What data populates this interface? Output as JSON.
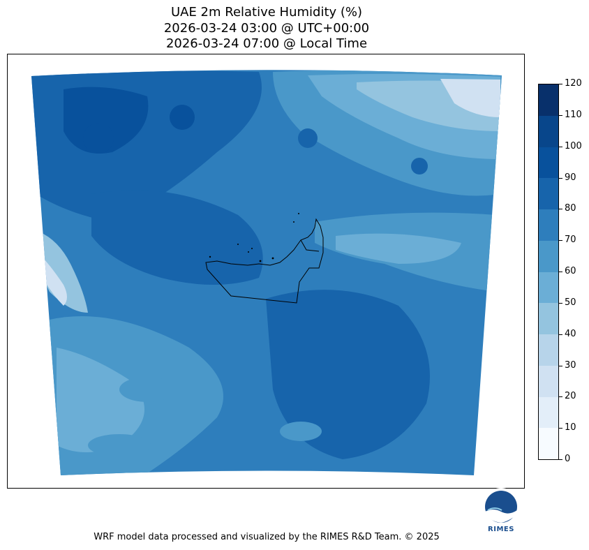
{
  "title": {
    "line1": "UAE 2m Relative Humidity (%)",
    "line2": "2026-03-24 03:00 @ UTC+00:00",
    "line3": "2026-03-24 07:00 @ Local Time"
  },
  "colorbar": {
    "ticks": [
      "0",
      "10",
      "20",
      "30",
      "40",
      "50",
      "60",
      "70",
      "80",
      "90",
      "100",
      "110",
      "120"
    ],
    "colors": [
      "#f7fbff",
      "#e3eef9",
      "#d0e1f2",
      "#b7d4ea",
      "#94c4df",
      "#6baed6",
      "#4a98c9",
      "#2e7ebc",
      "#1764ab",
      "#08519c",
      "#08468b",
      "#08306b"
    ]
  },
  "map": {
    "variable": "2m Relative Humidity",
    "unit": "%"
  },
  "logo": {
    "text": "RIMES"
  },
  "footer": {
    "text": "WRF model data processed and visualized by the RIMES R&D Team. © 2025"
  }
}
